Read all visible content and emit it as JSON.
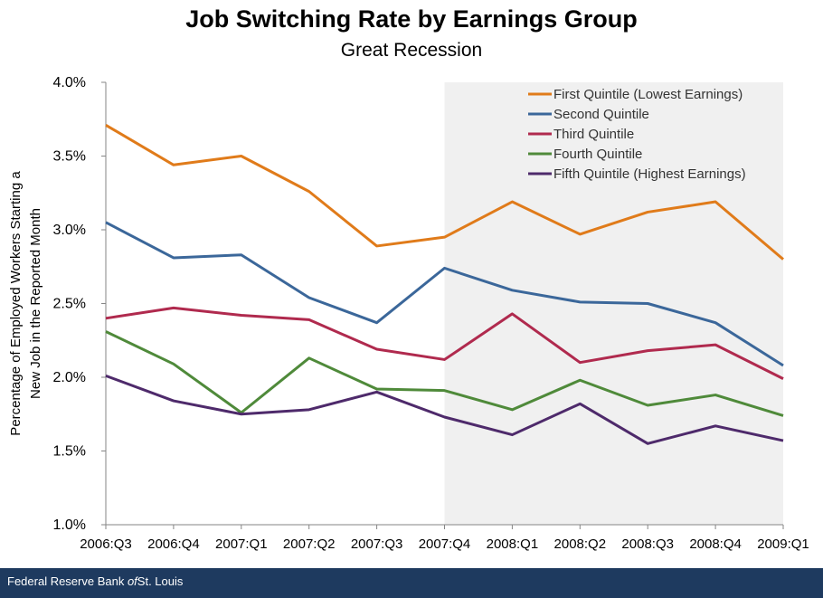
{
  "chart_data": {
    "type": "line",
    "title": "Job Switching Rate by Earnings Group",
    "subtitle": "Great Recession",
    "ylabel_lines": [
      "Percentage of Employed Workers Starting a",
      "New Job in the Reported Month"
    ],
    "xlabel": "",
    "ylim": [
      1.0,
      4.0
    ],
    "yticks": [
      "1.0%",
      "1.5%",
      "2.0%",
      "2.5%",
      "3.0%",
      "3.5%",
      "4.0%"
    ],
    "ytick_values": [
      1.0,
      1.5,
      2.0,
      2.5,
      3.0,
      3.5,
      4.0
    ],
    "categories": [
      "2006:Q3",
      "2006:Q4",
      "2007:Q1",
      "2007:Q2",
      "2007:Q3",
      "2007:Q4",
      "2008:Q1",
      "2008:Q2",
      "2008:Q3",
      "2008:Q4",
      "2009:Q1"
    ],
    "recession_shading": {
      "start": "2007:Q4",
      "end": "2009:Q1",
      "color": "#f0f0f0"
    },
    "legend_position": "top-right",
    "series": [
      {
        "name": "First Quintile (Lowest Earnings)",
        "color": "#e07b1a",
        "values": [
          3.71,
          3.44,
          3.5,
          3.26,
          2.89,
          2.95,
          3.19,
          2.97,
          3.12,
          3.19,
          2.8
        ]
      },
      {
        "name": "Second Quintile",
        "color": "#3b679a",
        "values": [
          3.05,
          2.81,
          2.83,
          2.54,
          2.37,
          2.74,
          2.59,
          2.51,
          2.5,
          2.37,
          2.08
        ]
      },
      {
        "name": "Third Quintile",
        "color": "#b02a4e",
        "values": [
          2.4,
          2.47,
          2.42,
          2.39,
          2.19,
          2.12,
          2.43,
          2.1,
          2.18,
          2.22,
          1.99
        ]
      },
      {
        "name": "Fourth Quintile",
        "color": "#4f8a3a",
        "values": [
          2.31,
          2.09,
          1.76,
          2.13,
          1.92,
          1.91,
          1.78,
          1.98,
          1.81,
          1.88,
          1.74
        ]
      },
      {
        "name": "Fifth Quintile (Highest Earnings)",
        "color": "#4e2a6b",
        "values": [
          2.01,
          1.84,
          1.75,
          1.78,
          1.9,
          1.73,
          1.61,
          1.82,
          1.55,
          1.67,
          1.57
        ]
      }
    ]
  },
  "footer": {
    "text_before": "Federal Reserve Bank ",
    "text_italic": "of",
    "text_after": "St. Louis"
  }
}
